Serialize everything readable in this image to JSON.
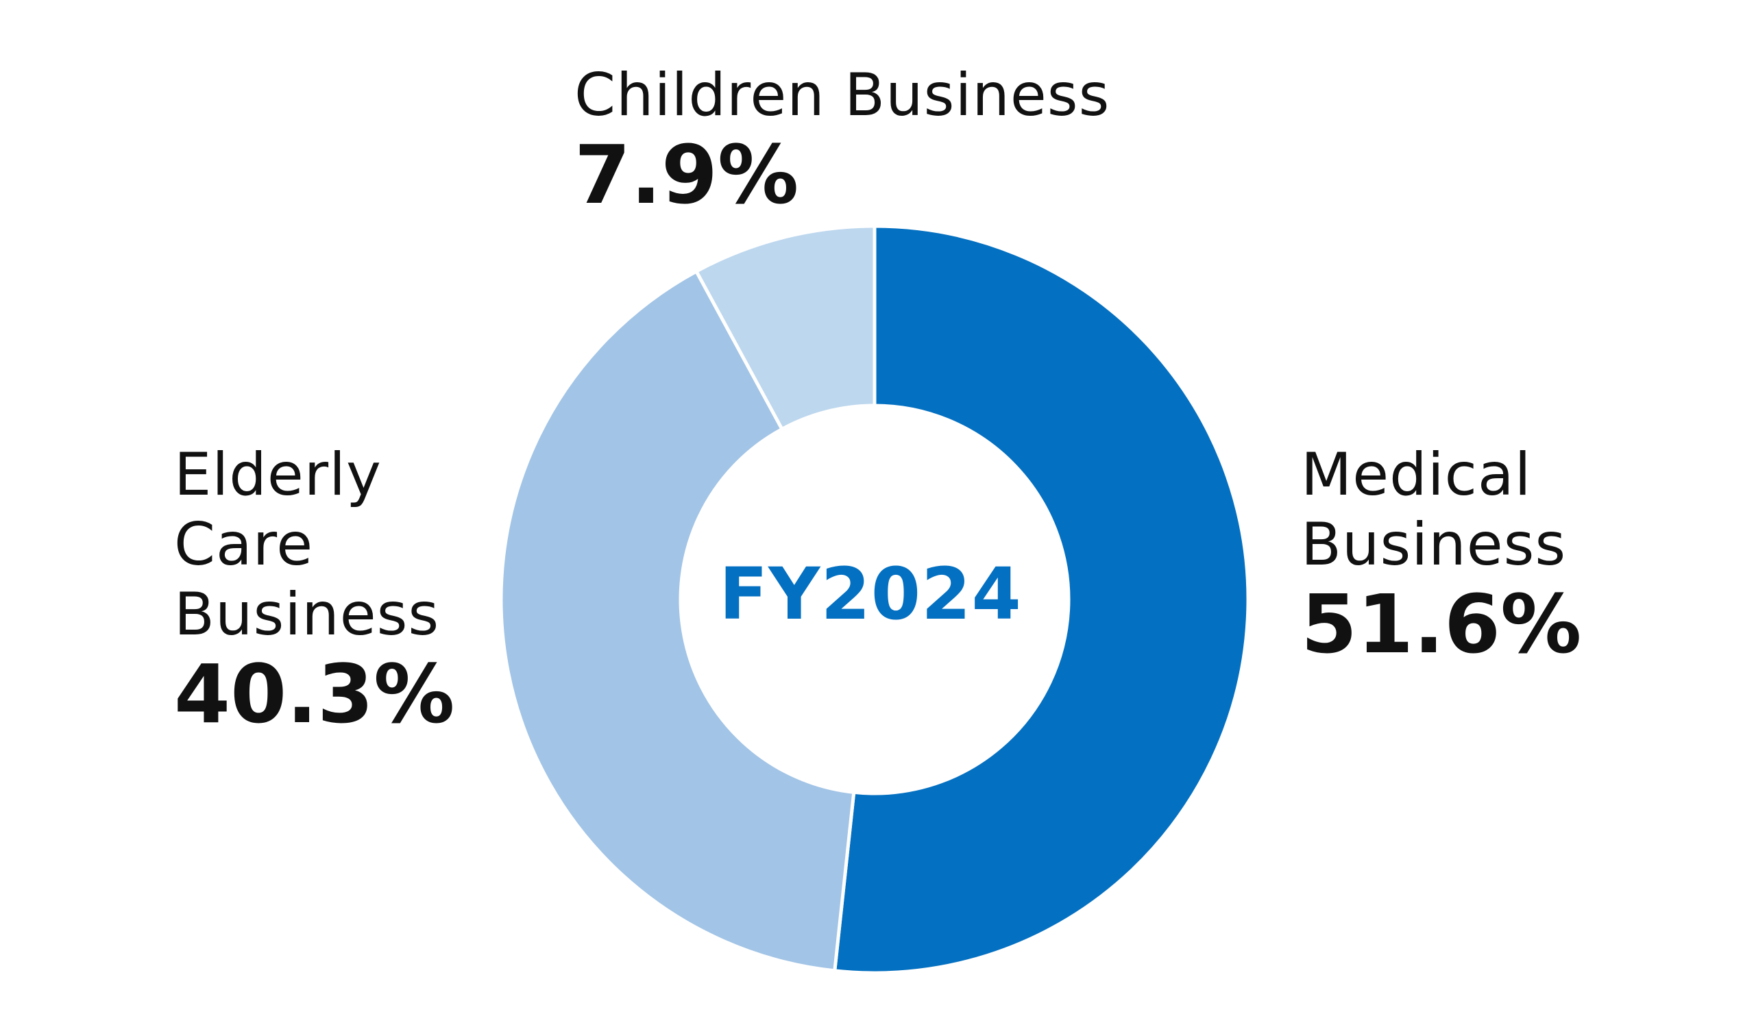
{
  "chart_data": {
    "type": "pie",
    "title": "",
    "center_label": "FY2024",
    "center_label_color": "#0470C1",
    "slices": [
      {
        "label": "Medical Business",
        "label_lines": [
          "Medical",
          "Business"
        ],
        "value": 51.6,
        "display_value": "51.6%",
        "color": "#0470C1"
      },
      {
        "label": "Elderly Care Business",
        "label_lines": [
          "Elderly",
          "Care",
          "Business"
        ],
        "value": 40.3,
        "display_value": "40.3%",
        "color": "#A2C4E6"
      },
      {
        "label": "Children Business",
        "label_lines": [
          "Children Business"
        ],
        "value": 7.9,
        "display_value": "7.9%",
        "color": "#BDD7EE"
      }
    ],
    "legend": "none",
    "style": "donut",
    "start": "12 o'clock, clockwise"
  }
}
